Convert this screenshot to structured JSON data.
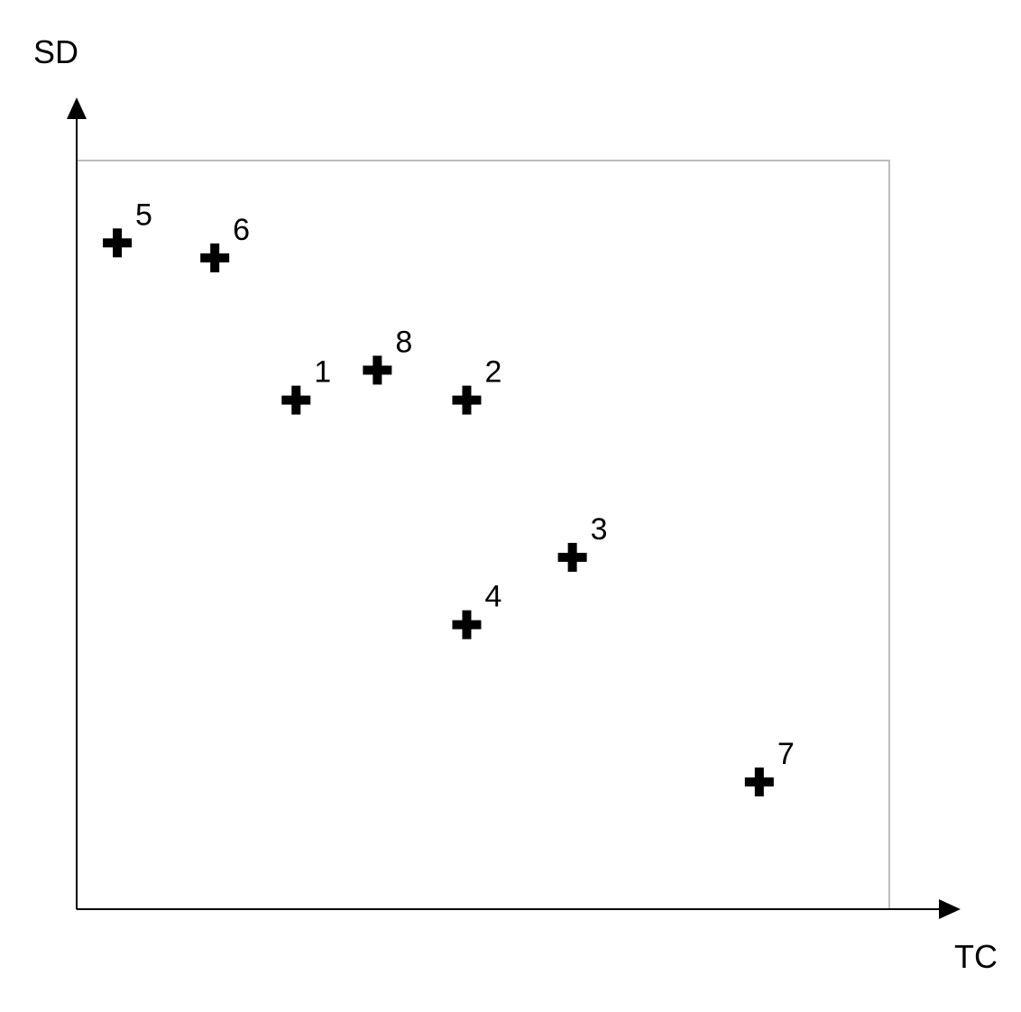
{
  "chart_data": {
    "type": "scatter",
    "title": "",
    "xlabel": "TC",
    "ylabel": "SD",
    "xlim": [
      0,
      100
    ],
    "ylim": [
      0,
      100
    ],
    "grid": false,
    "marker": "plus",
    "colors": {
      "marker": "#000000",
      "axis": "#000000",
      "frame": "#bdbdbd"
    },
    "points": [
      {
        "label": "1",
        "x": 27,
        "y": 68
      },
      {
        "label": "2",
        "x": 48,
        "y": 68
      },
      {
        "label": "3",
        "x": 61,
        "y": 47
      },
      {
        "label": "4",
        "x": 48,
        "y": 38
      },
      {
        "label": "5",
        "x": 5,
        "y": 89
      },
      {
        "label": "6",
        "x": 17,
        "y": 87
      },
      {
        "label": "7",
        "x": 84,
        "y": 17
      },
      {
        "label": "8",
        "x": 37,
        "y": 72
      }
    ]
  }
}
